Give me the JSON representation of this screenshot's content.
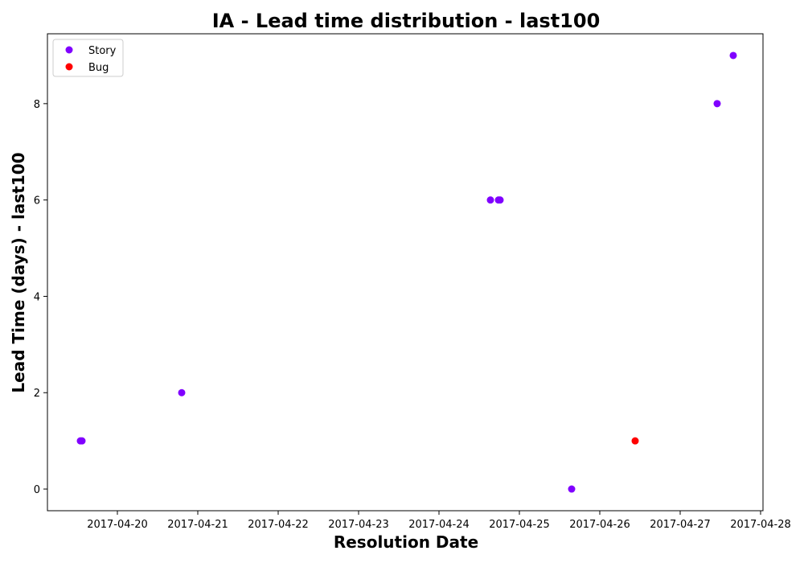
{
  "chart_data": {
    "type": "scatter",
    "title": "IA - Lead time distribution - last100",
    "xlabel": "Resolution Date",
    "ylabel": "Lead Time (days) - last100",
    "x_ticks": [
      "2017-04-20",
      "2017-04-21",
      "2017-04-22",
      "2017-04-23",
      "2017-04-24",
      "2017-04-25",
      "2017-04-26",
      "2017-04-27",
      "2017-04-28"
    ],
    "y_ticks": [
      "0",
      "2",
      "4",
      "6",
      "8"
    ],
    "xlim": [
      -0.87,
      8.03
    ],
    "ylim": [
      -0.45,
      9.45
    ],
    "legend_position": "upper-left",
    "series": [
      {
        "name": "Story",
        "color": "#8000ff",
        "points": [
          {
            "x": -0.46,
            "y": 1
          },
          {
            "x": -0.44,
            "y": 1
          },
          {
            "x": 0.8,
            "y": 2
          },
          {
            "x": 4.64,
            "y": 6
          },
          {
            "x": 4.74,
            "y": 6
          },
          {
            "x": 4.76,
            "y": 6
          },
          {
            "x": 5.65,
            "y": 0
          },
          {
            "x": 7.46,
            "y": 8
          },
          {
            "x": 7.66,
            "y": 9
          }
        ]
      },
      {
        "name": "Bug",
        "color": "#ff0000",
        "points": [
          {
            "x": 6.44,
            "y": 1
          }
        ]
      }
    ]
  }
}
